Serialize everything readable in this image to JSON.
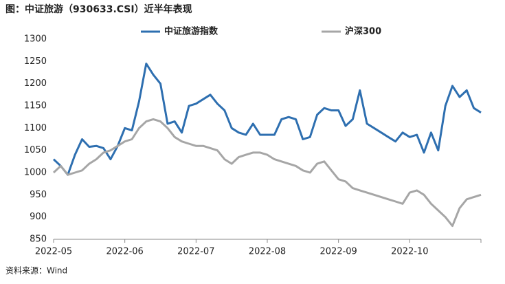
{
  "chart_data": {
    "type": "line",
    "title": "图：中证旅游（930633.CSI）近半年表现",
    "source": "资料来源：Wind",
    "categories": [
      "2022-05",
      null,
      null,
      null,
      null,
      null,
      null,
      null,
      null,
      null,
      "2022-06",
      null,
      null,
      null,
      null,
      null,
      null,
      null,
      null,
      null,
      "2022-07",
      null,
      null,
      null,
      null,
      null,
      null,
      null,
      null,
      null,
      "2022-08",
      null,
      null,
      null,
      null,
      null,
      null,
      null,
      null,
      null,
      "2022-09",
      null,
      null,
      null,
      null,
      null,
      null,
      null,
      null,
      null,
      "2022-10",
      null,
      null,
      null,
      null,
      null,
      null,
      null,
      null,
      null,
      null
    ],
    "series": [
      {
        "name": "中证旅游指数",
        "color": "#2e6fb0",
        "values": [
          1030,
          1015,
          995,
          1040,
          1075,
          1058,
          1060,
          1055,
          1030,
          1060,
          1100,
          1095,
          1160,
          1245,
          1220,
          1200,
          1110,
          1115,
          1090,
          1150,
          1155,
          1165,
          1175,
          1155,
          1140,
          1100,
          1090,
          1085,
          1110,
          1085,
          1085,
          1085,
          1120,
          1125,
          1120,
          1075,
          1080,
          1130,
          1145,
          1140,
          1140,
          1105,
          1120,
          1185,
          1110,
          1100,
          1090,
          1080,
          1070,
          1090,
          1080,
          1085,
          1045,
          1090,
          1050,
          1150,
          1195,
          1170,
          1185,
          1145,
          1135
        ]
      },
      {
        "name": "沪深300",
        "color": "#a6a6a6",
        "values": [
          1000,
          1015,
          995,
          1000,
          1005,
          1020,
          1030,
          1045,
          1050,
          1060,
          1070,
          1075,
          1100,
          1115,
          1120,
          1115,
          1100,
          1080,
          1070,
          1065,
          1060,
          1060,
          1055,
          1050,
          1030,
          1020,
          1035,
          1040,
          1045,
          1045,
          1040,
          1030,
          1025,
          1020,
          1015,
          1005,
          1000,
          1020,
          1025,
          1005,
          985,
          980,
          965,
          960,
          955,
          950,
          945,
          940,
          935,
          930,
          955,
          960,
          950,
          930,
          915,
          900,
          880,
          920,
          940,
          945,
          950
        ]
      }
    ],
    "ylim": [
      850,
      1300
    ],
    "yticks": [
      850,
      900,
      950,
      1000,
      1050,
      1100,
      1150,
      1200,
      1250,
      1300
    ]
  }
}
